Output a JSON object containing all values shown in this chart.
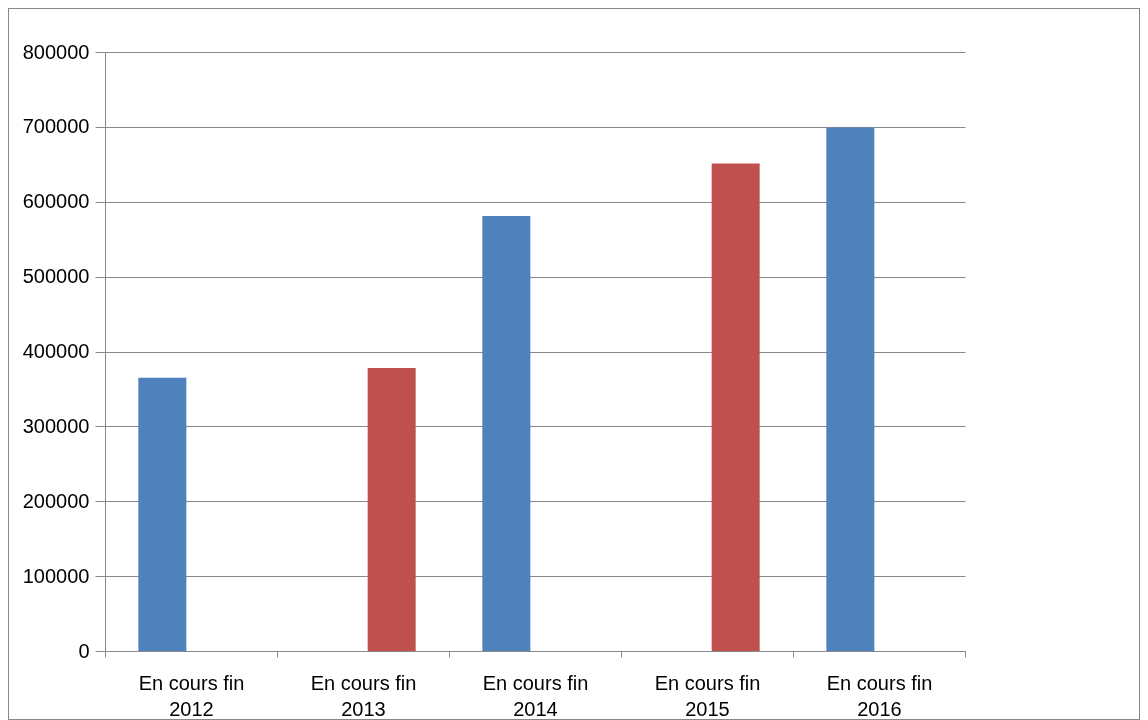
{
  "chart_data": {
    "type": "bar",
    "categories": [
      "En cours fin 2012",
      "En cours fin 2013",
      "En cours fin 2014",
      "En cours fin 2015",
      "En cours fin 2016"
    ],
    "series": [
      {
        "color": "#4f81bd",
        "values": [
          365000,
          null,
          581000,
          null,
          699000
        ]
      },
      {
        "color": "#c0504d",
        "values": [
          null,
          378000,
          null,
          651000,
          null
        ]
      }
    ],
    "ylim": [
      0,
      800000
    ],
    "yticks": [
      0,
      100000,
      200000,
      300000,
      400000,
      500000,
      600000,
      700000,
      800000
    ],
    "grid": "y"
  }
}
